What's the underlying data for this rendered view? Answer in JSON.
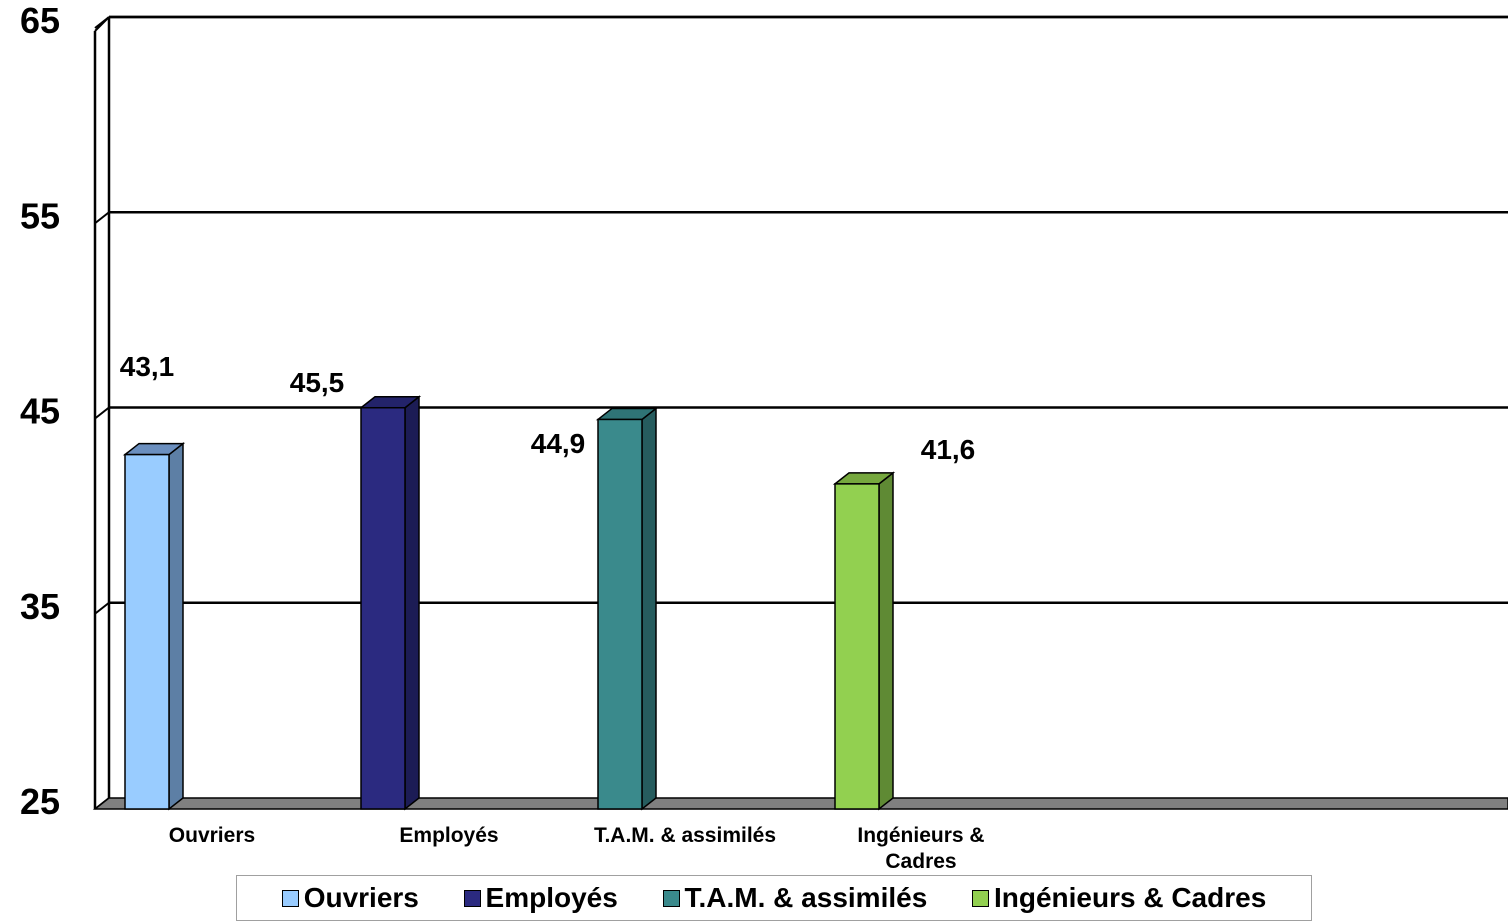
{
  "chart_data": {
    "type": "bar",
    "categories": [
      "Ouvriers",
      "Employés",
      "T.A.M. & assimilés",
      "Ingénieurs & Cadres"
    ],
    "category_tick_labels": [
      [
        "Ouvriers"
      ],
      [
        "Employés"
      ],
      [
        "T.A.M. & assimilés"
      ],
      [
        "Ingénieurs &",
        "Cadres"
      ]
    ],
    "values": [
      43.1,
      45.5,
      44.9,
      41.6
    ],
    "value_labels": [
      "43,1",
      "45,5",
      "44,9",
      "41,6"
    ],
    "ylim": [
      25,
      65
    ],
    "yticks": [
      25,
      35,
      45,
      55,
      65
    ],
    "title": "",
    "xlabel": "",
    "ylabel": "",
    "grid": true,
    "legend_position": "bottom",
    "colors": {
      "front": [
        "#99ccff",
        "#2b2a80",
        "#3a8a8c",
        "#92d050"
      ],
      "side": [
        "#5d7fa5",
        "#1c1c55",
        "#265c5e",
        "#5f8a34"
      ],
      "top": [
        "#6b8fbf",
        "#23236a",
        "#2f7476",
        "#76a83e"
      ]
    }
  },
  "legend": {
    "items": [
      {
        "label": "Ouvriers",
        "color": "#99ccff"
      },
      {
        "label": "Employés",
        "color": "#2b2a80"
      },
      {
        "label": "T.A.M. & assimilés",
        "color": "#3a8a8c"
      },
      {
        "label": "Ingénieurs & Cadres",
        "color": "#92d050"
      }
    ]
  }
}
